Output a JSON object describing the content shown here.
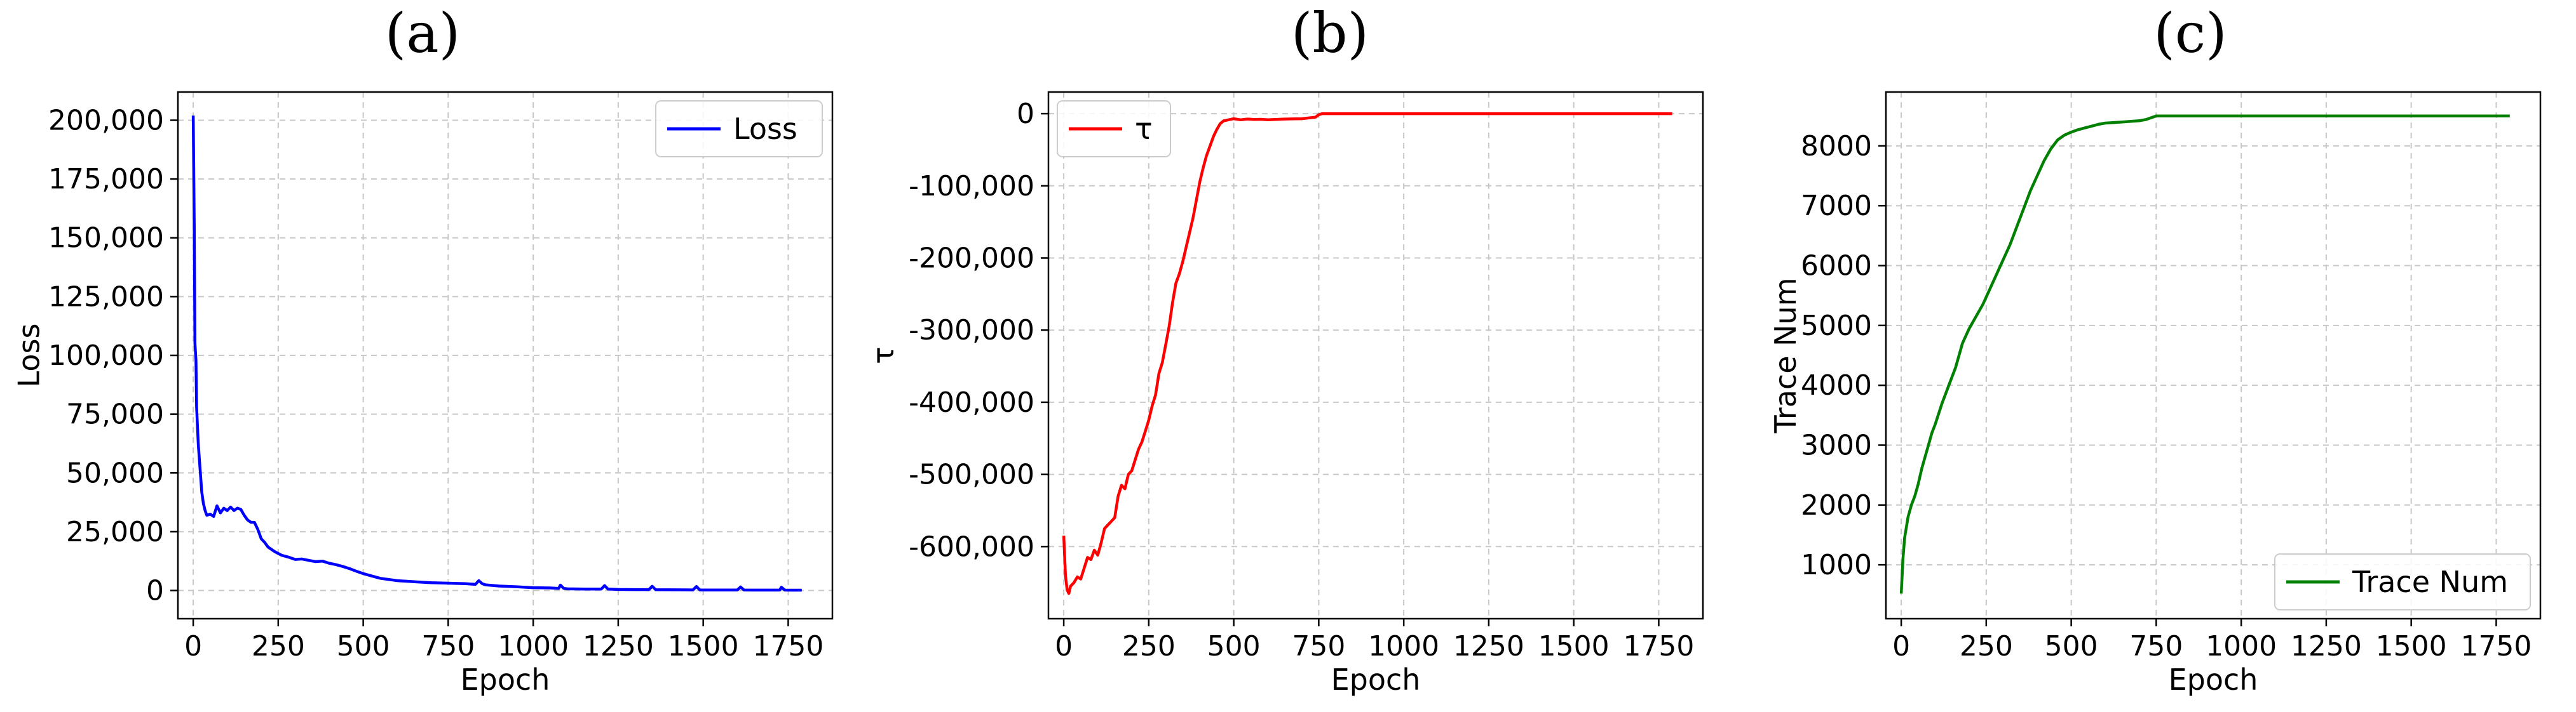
{
  "chart_data": [
    {
      "type": "line",
      "title": "(a)",
      "xlabel": "Epoch",
      "ylabel": "Loss",
      "xlim": [
        -45,
        1880
      ],
      "ylim": [
        -12000,
        212000
      ],
      "xticks": [
        0,
        250,
        500,
        750,
        1000,
        1250,
        1500,
        1750
      ],
      "xtick_labels": [
        "0",
        "250",
        "500",
        "750",
        "1000",
        "1250",
        "1500",
        "1750"
      ],
      "yticks": [
        0,
        25000,
        50000,
        75000,
        100000,
        125000,
        150000,
        175000,
        200000
      ],
      "ytick_labels": [
        "0",
        "25,000",
        "50,000",
        "75,000",
        "100,000",
        "125,000",
        "150,000",
        "175,000",
        "200,000"
      ],
      "grid": true,
      "legend_position": "top-right",
      "series": [
        {
          "name": "Loss",
          "color": "#0000ff",
          "x": [
            0,
            3,
            5,
            8,
            10,
            15,
            20,
            25,
            30,
            35,
            40,
            50,
            60,
            70,
            80,
            90,
            100,
            110,
            120,
            130,
            140,
            150,
            160,
            170,
            180,
            190,
            200,
            210,
            220,
            240,
            260,
            280,
            300,
            320,
            340,
            360,
            380,
            400,
            420,
            440,
            460,
            480,
            500,
            550,
            600,
            650,
            700,
            750,
            800,
            830,
            840,
            850,
            860,
            900,
            950,
            1000,
            1050,
            1075,
            1080,
            1090,
            1100,
            1150,
            1200,
            1210,
            1220,
            1250,
            1300,
            1340,
            1350,
            1360,
            1400,
            1450,
            1470,
            1480,
            1490,
            1500,
            1550,
            1600,
            1610,
            1620,
            1650,
            1700,
            1725,
            1730,
            1740,
            1760,
            1790
          ],
          "y": [
            202000,
            155000,
            105000,
            98000,
            78000,
            62000,
            52000,
            42000,
            37000,
            34000,
            32000,
            32500,
            31500,
            36000,
            33000,
            35000,
            34000,
            35500,
            34000,
            35000,
            34500,
            32000,
            30000,
            29000,
            29000,
            26000,
            22000,
            20500,
            18500,
            16500,
            15000,
            14200,
            13200,
            13400,
            12800,
            12300,
            12500,
            11600,
            11000,
            10200,
            9300,
            8200,
            7200,
            5200,
            4200,
            3700,
            3300,
            3100,
            2900,
            2600,
            4200,
            2900,
            2400,
            1900,
            1600,
            1200,
            1100,
            900,
            2300,
            900,
            700,
            600,
            600,
            2100,
            600,
            450,
            400,
            350,
            1800,
            350,
            300,
            280,
            250,
            1700,
            250,
            230,
            200,
            190,
            1500,
            190,
            180,
            170,
            160,
            1400,
            160,
            150,
            150
          ]
        }
      ]
    },
    {
      "type": "line",
      "title": "(b)",
      "xlabel": "Epoch",
      "ylabel": "τ",
      "xlim": [
        -45,
        1880
      ],
      "ylim": [
        -700000,
        30000
      ],
      "xticks": [
        0,
        250,
        500,
        750,
        1000,
        1250,
        1500,
        1750
      ],
      "xtick_labels": [
        "0",
        "250",
        "500",
        "750",
        "1000",
        "1250",
        "1500",
        "1750"
      ],
      "yticks": [
        0,
        -100000,
        -200000,
        -300000,
        -400000,
        -500000,
        -600000
      ],
      "ytick_labels": [
        "0",
        "-100,000",
        "-200,000",
        "-300,000",
        "-400,000",
        "-500,000",
        "-600,000"
      ],
      "grid": true,
      "legend_position": "top-left",
      "series": [
        {
          "name": "τ",
          "color": "#ff0000",
          "x": [
            0,
            5,
            10,
            15,
            20,
            30,
            40,
            50,
            60,
            70,
            80,
            90,
            100,
            110,
            120,
            130,
            140,
            150,
            160,
            170,
            180,
            190,
            200,
            210,
            220,
            230,
            240,
            250,
            260,
            270,
            280,
            290,
            300,
            310,
            320,
            330,
            340,
            350,
            360,
            370,
            380,
            390,
            400,
            410,
            420,
            430,
            440,
            450,
            460,
            470,
            480,
            490,
            500,
            520,
            540,
            560,
            580,
            600,
            650,
            700,
            720,
            740,
            750,
            760,
            800,
            850,
            900,
            1000,
            1100,
            1200,
            1300,
            1400,
            1500,
            1600,
            1700,
            1790
          ],
          "y": [
            -585000,
            -640000,
            -660000,
            -665000,
            -655000,
            -650000,
            -642000,
            -645000,
            -630000,
            -615000,
            -618000,
            -605000,
            -612000,
            -595000,
            -575000,
            -570000,
            -565000,
            -560000,
            -530000,
            -515000,
            -520000,
            -500000,
            -495000,
            -480000,
            -465000,
            -455000,
            -440000,
            -425000,
            -405000,
            -390000,
            -360000,
            -345000,
            -320000,
            -295000,
            -262000,
            -235000,
            -222000,
            -205000,
            -185000,
            -165000,
            -145000,
            -120000,
            -95000,
            -75000,
            -58000,
            -45000,
            -32000,
            -22000,
            -14000,
            -10000,
            -9000,
            -8000,
            -7000,
            -8500,
            -7500,
            -8000,
            -7800,
            -8500,
            -7500,
            -7000,
            -6000,
            -5000,
            -1500,
            0,
            0,
            0,
            0,
            0,
            0,
            0,
            0,
            0,
            0,
            0,
            0,
            0
          ]
        }
      ]
    },
    {
      "type": "line",
      "title": "(c)",
      "xlabel": "Epoch",
      "ylabel": "Trace Num",
      "xlim": [
        -45,
        1880
      ],
      "ylim": [
        100,
        8900
      ],
      "xticks": [
        0,
        250,
        500,
        750,
        1000,
        1250,
        1500,
        1750
      ],
      "xtick_labels": [
        "0",
        "250",
        "500",
        "750",
        "1000",
        "1250",
        "1500",
        "1750"
      ],
      "yticks": [
        1000,
        2000,
        3000,
        4000,
        5000,
        6000,
        7000,
        8000
      ],
      "ytick_labels": [
        "1000",
        "2000",
        "3000",
        "4000",
        "5000",
        "6000",
        "7000",
        "8000"
      ],
      "grid": true,
      "legend_position": "bottom-right",
      "series": [
        {
          "name": "Trace Num",
          "color": "#008000",
          "x": [
            0,
            5,
            10,
            20,
            30,
            40,
            50,
            60,
            70,
            80,
            90,
            100,
            120,
            140,
            160,
            180,
            200,
            220,
            240,
            260,
            280,
            300,
            320,
            340,
            360,
            380,
            400,
            420,
            440,
            460,
            480,
            500,
            520,
            540,
            560,
            580,
            600,
            650,
            700,
            720,
            740,
            750,
            800,
            900,
            1000,
            1200,
            1400,
            1600,
            1790
          ],
          "y": [
            520,
            1100,
            1450,
            1800,
            2000,
            2150,
            2350,
            2600,
            2800,
            3000,
            3200,
            3350,
            3700,
            4000,
            4300,
            4700,
            4950,
            5150,
            5350,
            5600,
            5850,
            6100,
            6350,
            6650,
            6950,
            7250,
            7500,
            7750,
            7950,
            8100,
            8180,
            8230,
            8270,
            8300,
            8330,
            8360,
            8380,
            8400,
            8420,
            8440,
            8480,
            8500,
            8500,
            8500,
            8500,
            8500,
            8500,
            8500,
            8500
          ]
        }
      ]
    }
  ]
}
